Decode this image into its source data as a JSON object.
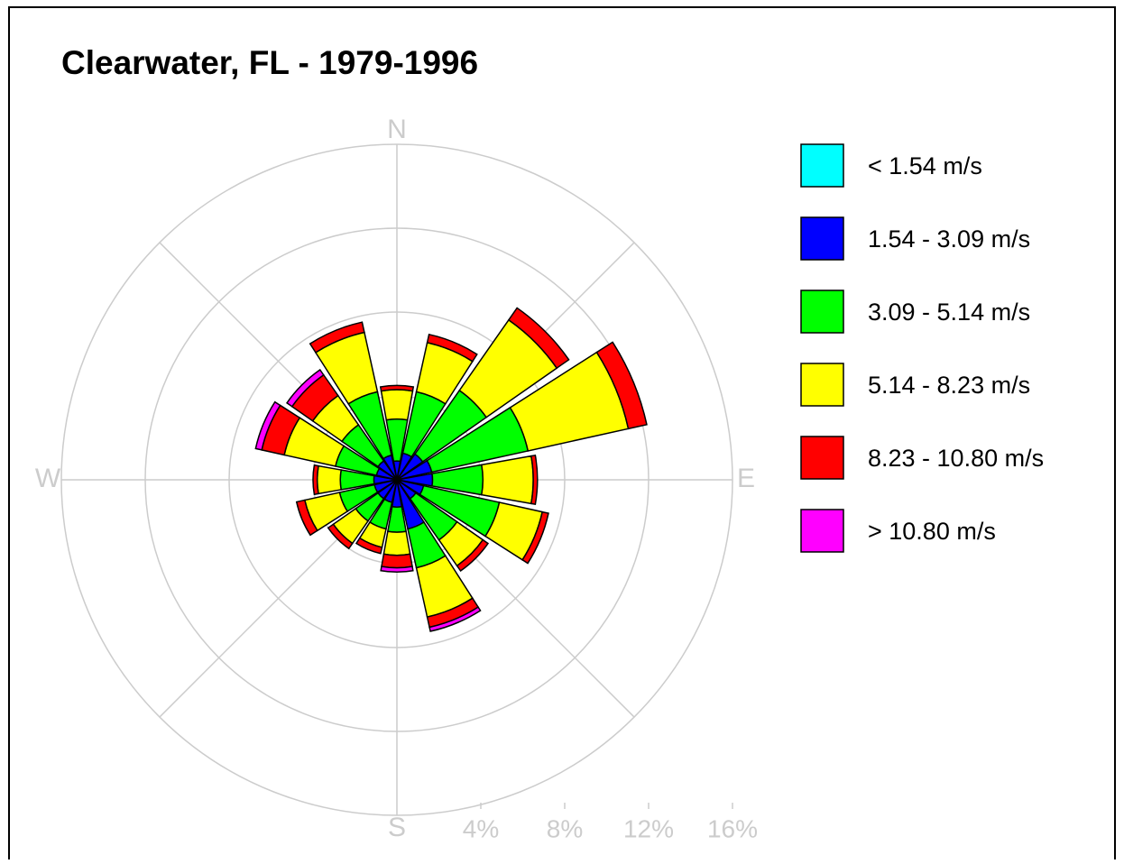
{
  "chart_data": {
    "type": "windrose",
    "title": "Clearwater, FL - 1979-1996",
    "categories": [
      "N",
      null,
      null,
      null,
      "E",
      null,
      null,
      null,
      "S",
      null,
      null,
      null,
      "W",
      null,
      null,
      null
    ],
    "series": [
      {
        "name": "< 1.54 m/s",
        "color": "#00ffff",
        "values": [
          0.1,
          0.1,
          0.1,
          0.1,
          0.1,
          0.1,
          0.1,
          0.1,
          0.1,
          0.1,
          0.1,
          0.1,
          0.1,
          0.1,
          0.1,
          0.1
        ]
      },
      {
        "name": "1.54 - 3.09 m/s",
        "color": "#0000ff",
        "values": [
          0.8,
          1.2,
          1.4,
          1.6,
          1.6,
          1.2,
          1.0,
          2.3,
          1.2,
          1.0,
          1.0,
          1.0,
          1.0,
          0.9,
          1.0,
          1.1
        ]
      },
      {
        "name": "3.09 - 5.14 m/s",
        "color": "#00ff00",
        "values": [
          2.0,
          3.0,
          3.7,
          4.7,
          2.4,
          3.7,
          2.4,
          1.9,
          1.2,
          1.3,
          1.3,
          1.7,
          1.6,
          2.0,
          2.1,
          3.1
        ]
      },
      {
        "name": "5.14 - 8.23 m/s",
        "color": "#ffff00",
        "values": [
          1.4,
          2.4,
          4.1,
          4.9,
          2.4,
          2.1,
          1.5,
          2.4,
          1.1,
          0.9,
          1.3,
          1.7,
          1.1,
          2.5,
          1.7,
          2.9
        ]
      },
      {
        "name": "8.23 - 10.80 m/s",
        "color": "#ff0000",
        "values": [
          0.2,
          0.4,
          0.7,
          0.9,
          0.2,
          0.3,
          0.3,
          0.5,
          0.6,
          0.3,
          0.3,
          0.4,
          0.2,
          1.1,
          1.2,
          0.5
        ]
      },
      {
        "name": "> 10.80 m/s",
        "color": "#ff00ff",
        "values": [
          0,
          0,
          0,
          0,
          0,
          0,
          0,
          0.2,
          0.2,
          0,
          0,
          0,
          0,
          0.3,
          0.3,
          0
        ]
      }
    ],
    "rlim": [
      0,
      16
    ],
    "rticks": [
      {
        "value": 4,
        "label": "4%"
      },
      {
        "value": 8,
        "label": "8%"
      },
      {
        "value": 12,
        "label": "12%"
      },
      {
        "value": 16,
        "label": "16%"
      }
    ],
    "grid": true
  }
}
